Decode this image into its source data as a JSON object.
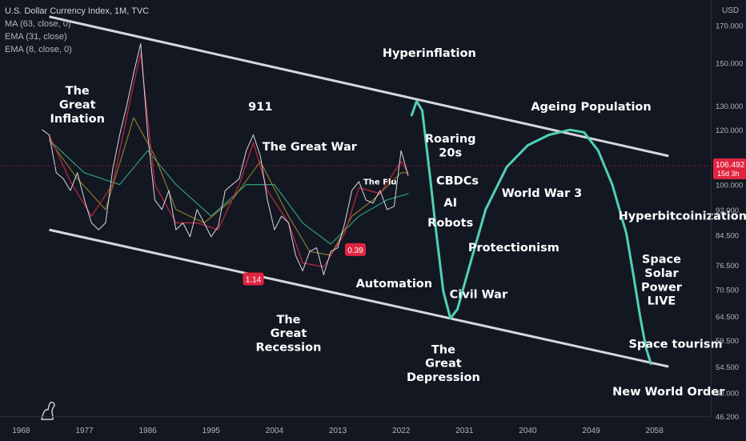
{
  "legend": {
    "title": "U.S. Dollar Currency Index, 1M, TVC",
    "indicators": [
      "MA (63, close, 0)",
      "EMA (31, close)",
      "EMA (8, close, 0)"
    ]
  },
  "price_scale": {
    "currency": "USD",
    "last_price": "106.492",
    "countdown": "15d 3h"
  },
  "colors": {
    "background": "#131722",
    "price_line": "#d9d9e0",
    "ma_line": "#2e9e7f",
    "ema31_line": "#8a7a2a",
    "ema8_line": "#c2283f",
    "channel": "#d6d6dc",
    "projection": "#4fd1b4",
    "badge": "#e0243f",
    "label_text": "#ffffff"
  },
  "chart_data": {
    "type": "line",
    "title": "U.S. Dollar Currency Index, 1M, TVC",
    "y_scale": "log",
    "ylim": [
      46.2,
      185
    ],
    "xlim": [
      1965,
      2066
    ],
    "grid": false,
    "y_ticks": [
      "170.000",
      "150.000",
      "130.000",
      "120.000",
      "100.000",
      "92.000",
      "84.500",
      "76.500",
      "70.500",
      "64.500",
      "59.500",
      "54.500",
      "50.000",
      "46.200"
    ],
    "x_ticks": [
      "1968",
      "1977",
      "1986",
      "1995",
      "2004",
      "2013",
      "2022",
      "2031",
      "2040",
      "2049",
      "2058"
    ],
    "series": [
      {
        "key": "price",
        "x": [
          1971,
          1972,
          1973,
          1974,
          1975,
          1976,
          1977,
          1978,
          1979,
          1980,
          1981,
          1982,
          1983,
          1984,
          1985,
          1986,
          1987,
          1988,
          1989,
          1990,
          1991,
          1992,
          1993,
          1994,
          1995,
          1996,
          1997,
          1998,
          1999,
          2000,
          2001,
          2002,
          2003,
          2004,
          2005,
          2006,
          2007,
          2008,
          2009,
          2010,
          2011,
          2012,
          2013,
          2014,
          2015,
          2016,
          2017,
          2018,
          2019,
          2020,
          2021,
          2022,
          2023
        ],
        "values": [
          120,
          118,
          104,
          102,
          98,
          104,
          95,
          88,
          86,
          88,
          105,
          118,
          130,
          145,
          160,
          118,
          95,
          92,
          98,
          86,
          88,
          84,
          92,
          88,
          84,
          87,
          98,
          100,
          102,
          112,
          118,
          110,
          95,
          86,
          90,
          88,
          79,
          75,
          80,
          81,
          74,
          80,
          81,
          88,
          98,
          101,
          95,
          94,
          98,
          92,
          93,
          112,
          103
        ]
      },
      {
        "key": "ema8",
        "x": [
          1972,
          1975,
          1978,
          1981,
          1984,
          1985,
          1987,
          1990,
          1993,
          1996,
          1999,
          2001,
          2003,
          2006,
          2008,
          2011,
          2014,
          2016,
          2019,
          2022,
          2023
        ],
        "values": [
          118,
          101,
          90,
          100,
          140,
          155,
          100,
          88,
          88,
          86,
          100,
          115,
          98,
          88,
          77,
          76,
          85,
          99,
          97,
          108,
          104
        ]
      },
      {
        "key": "ema31",
        "x": [
          1972,
          1976,
          1980,
          1984,
          1987,
          1990,
          1994,
          1998,
          2002,
          2006,
          2009,
          2012,
          2015,
          2018,
          2022,
          2023
        ],
        "values": [
          116,
          102,
          92,
          125,
          110,
          92,
          88,
          95,
          108,
          90,
          80,
          79,
          90,
          95,
          104,
          104
        ]
      },
      {
        "key": "ma63",
        "x": [
          1972,
          1977,
          1982,
          1986,
          1990,
          1995,
          2000,
          2004,
          2008,
          2012,
          2016,
          2020,
          2023
        ],
        "values": [
          116,
          104,
          100,
          112,
          100,
          90,
          100,
          100,
          88,
          82,
          90,
          95,
          97
        ]
      },
      {
        "key": "projection",
        "x": [
          2023.5,
          2024.2,
          2025,
          2026,
          2027,
          2028,
          2029,
          2030,
          2032,
          2034,
          2037,
          2040,
          2043,
          2046,
          2048,
          2050,
          2052,
          2054,
          2055,
          2056,
          2056.8,
          2057.5
        ],
        "values": [
          126,
          132,
          128,
          105,
          85,
          70,
          64,
          66,
          78,
          92,
          106,
          114,
          118,
          120,
          119,
          112,
          100,
          85,
          74,
          64,
          58,
          55
        ]
      }
    ],
    "channel": {
      "upper": {
        "x": [
          1972,
          2060
        ],
        "values": [
          175,
          110
        ]
      },
      "lower": {
        "x": [
          1972,
          2060
        ],
        "values": [
          86,
          54.5
        ]
      }
    },
    "annotations": [
      {
        "text": "The Great Inflation",
        "lines": [
          "The",
          "Great",
          "Inflation"
        ],
        "x": 1976,
        "y": 135
      },
      {
        "text": "911",
        "x": 2002,
        "y": 128
      },
      {
        "text": "The Great War",
        "x": 2009,
        "y": 112
      },
      {
        "text": "Hyperinflation",
        "x": 2026,
        "y": 153
      },
      {
        "text": "Ageing Population",
        "x": 2049,
        "y": 128
      },
      {
        "text": "Roaring 20s",
        "lines": [
          "Roaring",
          "20s"
        ],
        "x": 2029,
        "y": 115
      },
      {
        "text": "CBDCs",
        "x": 2030,
        "y": 100
      },
      {
        "text": "AI",
        "x": 2029,
        "y": 93
      },
      {
        "text": "Robots",
        "x": 2029,
        "y": 87
      },
      {
        "text": "World War 3",
        "x": 2042,
        "y": 96
      },
      {
        "text": "Hyperbitcoinization",
        "x": 2062,
        "y": 89
      },
      {
        "text": "Protectionism",
        "x": 2038,
        "y": 80
      },
      {
        "text": "Automation",
        "x": 2021,
        "y": 71
      },
      {
        "text": "Civil War",
        "x": 2033,
        "y": 68.5
      },
      {
        "text": "Space Solar Power LIVE",
        "lines": [
          "Space",
          "Solar",
          "Power",
          "LIVE"
        ],
        "x": 2059,
        "y": 77
      },
      {
        "text": "The Great Recession",
        "lines": [
          "The",
          "Great",
          "Recession"
        ],
        "x": 2006,
        "y": 63
      },
      {
        "text": "The Great Depression",
        "lines": [
          "The",
          "Great",
          "Depression"
        ],
        "x": 2028,
        "y": 57
      },
      {
        "text": "Space tourism",
        "x": 2061,
        "y": 58
      },
      {
        "text": "New World Order",
        "x": 2060,
        "y": 49.5
      },
      {
        "text": "The Flu",
        "x": 2019,
        "y": 100,
        "size": "small"
      },
      {
        "text": "1.14",
        "x": 2001,
        "y": 73,
        "badge": true
      },
      {
        "text": "0.39",
        "x": 2015.5,
        "y": 80.5,
        "badge": true
      }
    ]
  }
}
